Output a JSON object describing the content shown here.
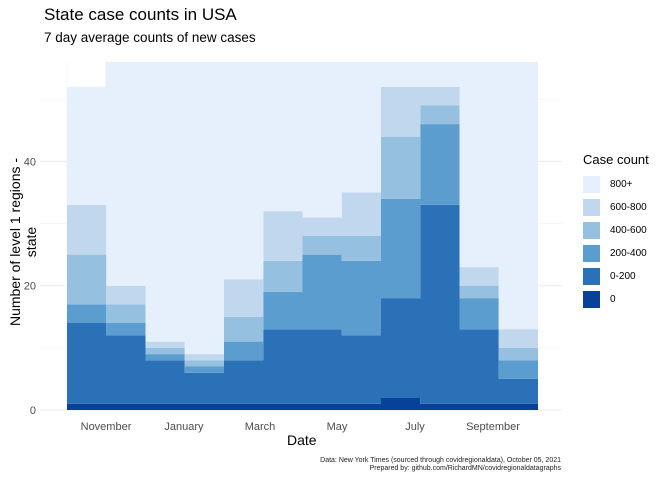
{
  "title": "State case counts in USA",
  "subtitle": "7 day average counts of new cases",
  "caption": {
    "line1": "Data: New York Times (sourced through covidregionaldata), October 05, 2021",
    "line2": "Prepared by: github.com/RichardMN/covidregionaldatagraphs"
  },
  "chart_data": {
    "type": "area",
    "stacked": true,
    "xlabel": "Date",
    "ylabel": "Number of level 1 regions - state",
    "x_ticks": [
      "November",
      "January",
      "March",
      "May",
      "July",
      "September"
    ],
    "y_ticks": [
      0,
      20,
      40
    ],
    "ylim": [
      0,
      56
    ],
    "legend_title": "Case count",
    "legend_position": "right",
    "grid": true,
    "x": [
      "Oct 2020",
      "Nov 2020",
      "Dec 2020",
      "Jan 2021",
      "Feb 2021",
      "Mar 2021",
      "Apr 2021",
      "May 2021",
      "Jun 2021",
      "Jul 2021",
      "Aug 2021",
      "Sep 2021",
      "Oct 2021"
    ],
    "series": [
      {
        "name": "0",
        "color": "#08419a",
        "values": [
          1,
          1,
          1,
          1,
          1,
          1,
          1,
          1,
          2,
          1,
          1,
          1,
          1
        ]
      },
      {
        "name": "0-200",
        "color": "#2b71b8",
        "values": [
          13,
          11,
          7,
          5,
          7,
          12,
          12,
          11,
          16,
          32,
          12,
          4,
          5
        ]
      },
      {
        "name": "200-400",
        "color": "#5b9dcf",
        "values": [
          3,
          2,
          1,
          1,
          3,
          6,
          12,
          12,
          16,
          13,
          5,
          3,
          3
        ]
      },
      {
        "name": "400-600",
        "color": "#96c0e0",
        "values": [
          8,
          3,
          1,
          1,
          4,
          5,
          3,
          4,
          10,
          3,
          2,
          2,
          3
        ]
      },
      {
        "name": "600-800",
        "color": "#c0d7ee",
        "values": [
          8,
          3,
          1,
          1,
          6,
          8,
          3,
          7,
          8,
          3,
          3,
          3,
          4
        ]
      },
      {
        "name": "800+",
        "color": "#e6effc",
        "values": [
          19,
          36,
          45,
          47,
          35,
          24,
          25,
          21,
          4,
          4,
          33,
          43,
          40
        ]
      }
    ]
  }
}
